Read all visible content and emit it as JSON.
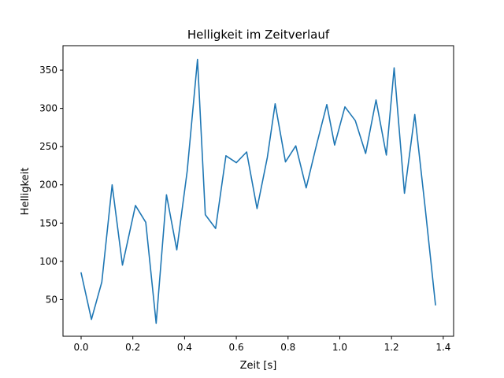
{
  "chart_data": {
    "type": "line",
    "title": "Helligkeit im Zeitverlauf",
    "xlabel": "Zeit [s]",
    "ylabel": "Helligkeit",
    "xlim": [
      -0.07,
      1.44
    ],
    "ylim": [
      2,
      382
    ],
    "xticks": [
      0.0,
      0.2,
      0.4,
      0.6,
      0.8,
      1.0,
      1.2,
      1.4
    ],
    "xtick_labels": [
      "0.0",
      "0.2",
      "0.4",
      "0.6",
      "0.8",
      "1.0",
      "1.2",
      "1.4"
    ],
    "yticks": [
      50,
      100,
      150,
      200,
      250,
      300,
      350
    ],
    "ytick_labels": [
      "50",
      "100",
      "150",
      "200",
      "250",
      "300",
      "350"
    ],
    "grid": false,
    "legend": "none",
    "line_color": "#1f77b4",
    "series": [
      {
        "x": [
          0.0,
          0.04,
          0.08,
          0.12,
          0.16,
          0.21,
          0.25,
          0.29,
          0.33,
          0.37,
          0.41,
          0.45,
          0.48,
          0.52,
          0.56,
          0.6,
          0.64,
          0.68,
          0.72,
          0.75,
          0.79,
          0.83,
          0.87,
          0.91,
          0.95,
          0.98,
          1.02,
          1.06,
          1.1,
          1.14,
          1.18,
          1.21,
          1.25,
          1.29,
          1.33,
          1.37
        ],
        "y": [
          85,
          24,
          73,
          200,
          95,
          173,
          151,
          19,
          187,
          115,
          218,
          364,
          161,
          143,
          238,
          229,
          243,
          169,
          236,
          306,
          230,
          251,
          196,
          252,
          305,
          252,
          302,
          284,
          241,
          311,
          239,
          353,
          189,
          292,
          170,
          43
        ]
      }
    ]
  }
}
